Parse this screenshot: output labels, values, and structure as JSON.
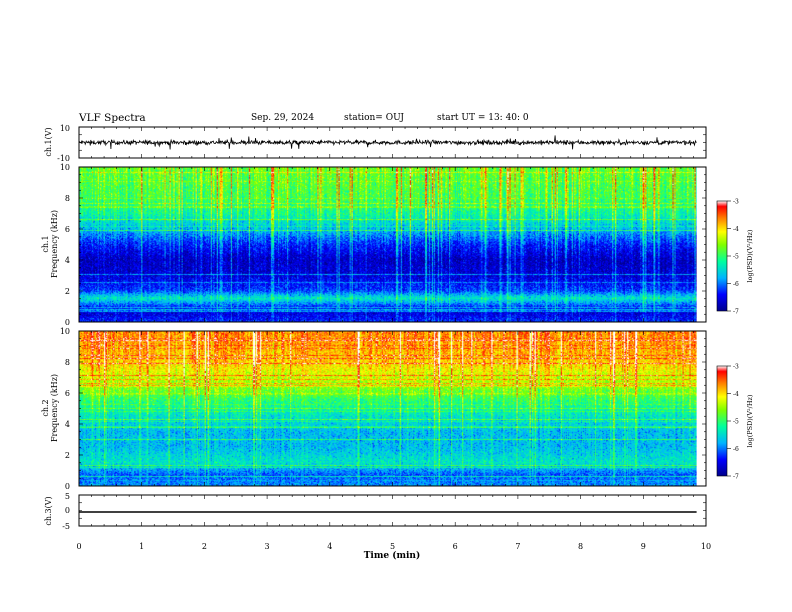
{
  "header": {
    "title": "VLF Spectra",
    "date": "Sep. 29, 2024",
    "station": "station= OUJ",
    "start": "start  UT  =   13: 40: 0"
  },
  "chart_data": [
    {
      "type": "line",
      "panel": "ch1_waveform",
      "ylabel": "ch.1(V)",
      "ylim": [
        -10,
        10
      ],
      "yticks": [
        "10",
        "-10"
      ],
      "xlim": [
        0,
        10
      ],
      "series": [
        {
          "baseline": 0,
          "noise_amplitude": 1.2
        }
      ]
    },
    {
      "type": "heatmap",
      "panel": "ch1_spectrogram",
      "ylabel": "ch.1\nFrequency (kHz)",
      "ylim": [
        0,
        10
      ],
      "yticks": [
        "10",
        "8",
        "6",
        "4",
        "2",
        "0"
      ],
      "xlim": [
        0,
        9.85
      ],
      "colorbar": {
        "label": "log(PSD)(V²/Hz)",
        "range": [
          -7,
          -3
        ],
        "ticks": [
          "-3",
          "-4",
          "-5",
          "-6",
          "-7"
        ]
      },
      "profile": [
        {
          "f": 0.0,
          "v": -6.3
        },
        {
          "f": 0.6,
          "v": -6.6
        },
        {
          "f": 1.0,
          "v": -6.2
        },
        {
          "f": 1.5,
          "v": -5.4
        },
        {
          "f": 2.0,
          "v": -6.2
        },
        {
          "f": 3.0,
          "v": -6.6
        },
        {
          "f": 4.0,
          "v": -6.7
        },
        {
          "f": 5.0,
          "v": -6.3
        },
        {
          "f": 6.0,
          "v": -5.7
        },
        {
          "f": 7.0,
          "v": -5.2
        },
        {
          "f": 8.0,
          "v": -4.9
        },
        {
          "f": 10.0,
          "v": -4.7
        }
      ]
    },
    {
      "type": "heatmap",
      "panel": "ch2_spectrogram",
      "ylabel": "ch.2\nFrequency (kHz)",
      "ylim": [
        0,
        10
      ],
      "yticks": [
        "10",
        "8",
        "6",
        "4",
        "2",
        "0"
      ],
      "xlim": [
        0,
        9.85
      ],
      "colorbar": {
        "label": "log(PSD)(V²/Hz)",
        "range": [
          -7,
          -3
        ],
        "ticks": [
          "-3",
          "-4",
          "-5",
          "-6",
          "-7"
        ]
      },
      "profile": [
        {
          "f": 0.0,
          "v": -5.9
        },
        {
          "f": 0.7,
          "v": -6.1
        },
        {
          "f": 1.5,
          "v": -5.4
        },
        {
          "f": 2.5,
          "v": -5.7
        },
        {
          "f": 3.5,
          "v": -5.7
        },
        {
          "f": 4.5,
          "v": -5.4
        },
        {
          "f": 5.5,
          "v": -5.0
        },
        {
          "f": 6.5,
          "v": -4.5
        },
        {
          "f": 8.0,
          "v": -3.9
        },
        {
          "f": 10.0,
          "v": -3.6
        }
      ]
    },
    {
      "type": "line",
      "panel": "ch3_waveform",
      "ylabel": "ch.3(V)",
      "ylim": [
        -5,
        5
      ],
      "yticks": [
        "5",
        "0",
        "-5"
      ],
      "xlim": [
        0,
        10
      ],
      "series": [
        {
          "baseline": -0.5,
          "noise_amplitude": 0
        }
      ]
    }
  ],
  "xaxis": {
    "label": "Time  (min)",
    "ticks": [
      "0",
      "1",
      "2",
      "3",
      "4",
      "5",
      "6",
      "7",
      "8",
      "9",
      "10"
    ],
    "range": [
      0,
      10
    ]
  }
}
